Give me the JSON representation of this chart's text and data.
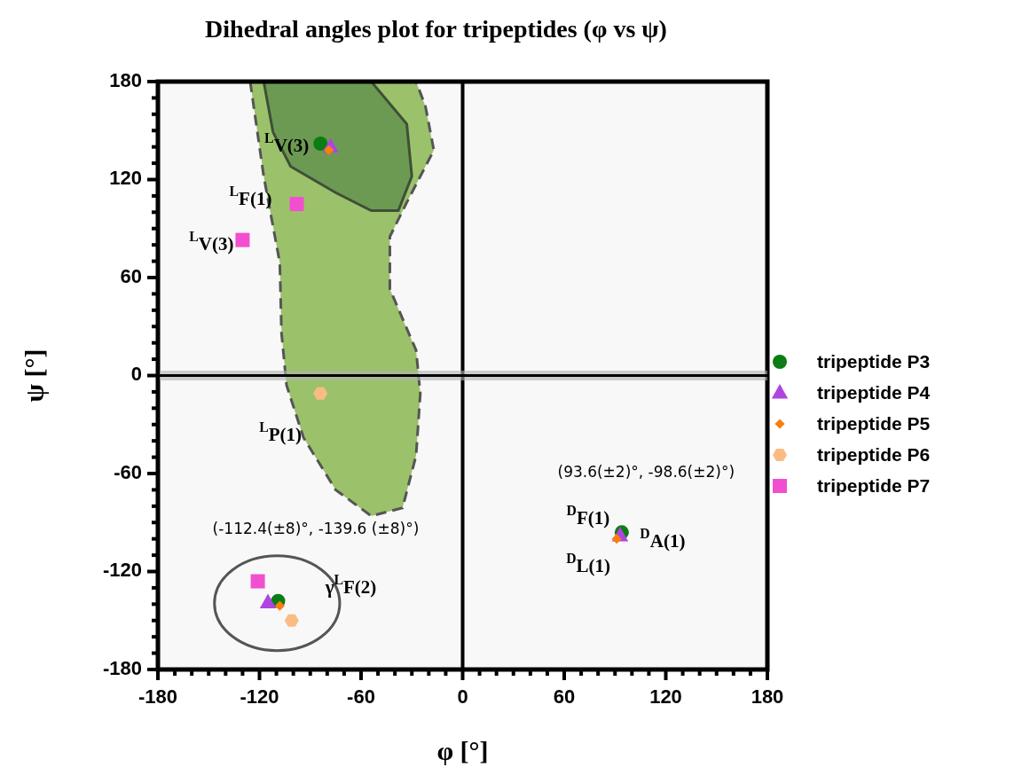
{
  "chart_data": {
    "type": "scatter",
    "title": "Dihedral angles plot for tripeptides (φ vs ψ)",
    "xlabel": "φ [°]",
    "ylabel": "ψ [°]",
    "xlim": [
      -180,
      180
    ],
    "ylim": [
      -180,
      180
    ],
    "xticks": [
      -180,
      {
        "value": -170,
        "label": null
      },
      {
        "value": -160,
        "label": null
      },
      {
        "value": -150,
        "label": null
      },
      {
        "value": -140,
        "label": null
      },
      {
        "value": -130,
        "label": null
      },
      -120,
      {
        "value": -110,
        "label": null
      },
      {
        "value": -100,
        "label": null
      },
      {
        "value": -90,
        "label": null
      },
      {
        "value": -80,
        "label": null
      },
      {
        "value": -70,
        "label": null
      },
      -60,
      {
        "value": -50,
        "label": null
      },
      {
        "value": -40,
        "label": null
      },
      {
        "value": -30,
        "label": null
      },
      {
        "value": -20,
        "label": null
      },
      {
        "value": -10,
        "label": null
      },
      0,
      {
        "value": 10,
        "label": null
      },
      {
        "value": 20,
        "label": null
      },
      {
        "value": 30,
        "label": null
      },
      {
        "value": 40,
        "label": null
      },
      {
        "value": 50,
        "label": null
      },
      60,
      {
        "value": 70,
        "label": null
      },
      {
        "value": 80,
        "label": null
      },
      {
        "value": 90,
        "label": null
      },
      {
        "value": 100,
        "label": null
      },
      {
        "value": 110,
        "label": null
      },
      120,
      {
        "value": 130,
        "label": null
      },
      {
        "value": 140,
        "label": null
      },
      {
        "value": 150,
        "label": null
      },
      {
        "value": 160,
        "label": null
      },
      {
        "value": 170,
        "label": null
      },
      180
    ],
    "yticks": [
      -180,
      {
        "value": -170,
        "label": null
      },
      {
        "value": -160,
        "label": null
      },
      {
        "value": -150,
        "label": null
      },
      {
        "value": -140,
        "label": null
      },
      {
        "value": -130,
        "label": null
      },
      -120,
      {
        "value": -110,
        "label": null
      },
      {
        "value": -100,
        "label": null
      },
      {
        "value": -90,
        "label": null
      },
      {
        "value": -80,
        "label": null
      },
      {
        "value": -70,
        "label": null
      },
      -60,
      {
        "value": -50,
        "label": null
      },
      {
        "value": -40,
        "label": null
      },
      {
        "value": -30,
        "label": null
      },
      {
        "value": -20,
        "label": null
      },
      {
        "value": -10,
        "label": null
      },
      0,
      {
        "value": 10,
        "label": null
      },
      {
        "value": 20,
        "label": null
      },
      {
        "value": 30,
        "label": null
      },
      {
        "value": 40,
        "label": null
      },
      {
        "value": 50,
        "label": null
      },
      60,
      {
        "value": 70,
        "label": null
      },
      {
        "value": 80,
        "label": null
      },
      {
        "value": 90,
        "label": null
      },
      {
        "value": 100,
        "label": null
      },
      {
        "value": 110,
        "label": null
      },
      120,
      {
        "value": 130,
        "label": null
      },
      {
        "value": 140,
        "label": null
      },
      {
        "value": 150,
        "label": null
      },
      {
        "value": 160,
        "label": null
      },
      {
        "value": 170,
        "label": null
      },
      180
    ],
    "legend": "right",
    "series": [
      {
        "name": "tripeptide P3",
        "color": "#0a7d14",
        "marker": "circle",
        "x": [
          -84,
          94,
          -109
        ],
        "values": [
          142,
          -96,
          -138
        ]
      },
      {
        "name": "tripeptide P4",
        "color": "#b044e0",
        "marker": "triangle",
        "x": [
          -78,
          93,
          -115
        ],
        "values": [
          140,
          -98,
          -139
        ]
      },
      {
        "name": "tripeptide P5",
        "color": "#f77f0e",
        "marker": "diamond",
        "x": [
          -79,
          91,
          -108
        ],
        "values": [
          138,
          -100,
          -141
        ]
      },
      {
        "name": "tripeptide P6",
        "color": "#fbbc84",
        "x": [
          -84,
          -101
        ],
        "values": [
          -11,
          -150
        ]
      },
      {
        "name": "tripeptide P7",
        "color": "#f14fd0",
        "marker": "square",
        "x": [
          -98,
          -130,
          -121
        ],
        "values": [
          105,
          83,
          -126
        ]
      }
    ],
    "ref_lines": [
      {
        "axis": "x",
        "value": 0,
        "color": "#000000"
      },
      {
        "axis": "y",
        "value": 0,
        "color": "#000000"
      }
    ],
    "annotations": [
      {
        "text": "$^{L}$V(3)",
        "x": -84,
        "y": 142
      },
      {
        "text": "$^{L}$F(1)",
        "x": -98,
        "y": 105
      },
      {
        "text": "$^{L}$V(3)",
        "x": -130,
        "y": 83
      },
      {
        "text": "$^{L}$P(1)",
        "x": -84,
        "y": -11
      },
      {
        "text": "γ$^{L}$F(2)",
        "x": -109,
        "y": -138
      },
      {
        "text": "$^{D}$F(1)",
        "x": 94,
        "y": -96
      },
      {
        "text": "$^{D}$A(1)",
        "x": 94,
        "y": -96
      },
      {
        "text": "$^{D}$L(1)",
        "x": 91,
        "y": -100
      },
      "(-112.4(±8)°, -139.6 (±8)°)",
      "(93.6(±2)°, -98.6(±2)°)"
    ]
  }
}
